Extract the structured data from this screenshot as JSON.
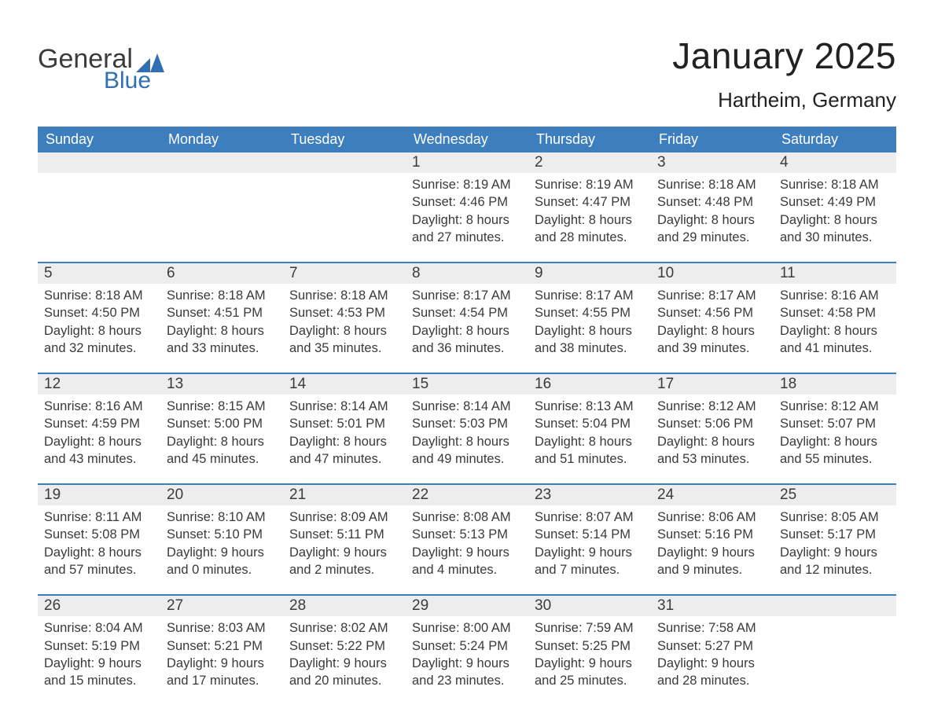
{
  "brand": {
    "word1": "General",
    "word2": "Blue",
    "text_color": "#3b3b3b",
    "accent_color": "#2f6fb2"
  },
  "header": {
    "title": "January 2025",
    "location": "Hartheim, Germany"
  },
  "calendar": {
    "type": "table",
    "header_bg": "#3d7ebf",
    "header_text_color": "#ffffff",
    "daynum_band_bg": "#ededed",
    "week_divider_color": "#3d7ebf",
    "body_text_color": "#3a3a3a",
    "font_family": "Arial",
    "dow": [
      "Sunday",
      "Monday",
      "Tuesday",
      "Wednesday",
      "Thursday",
      "Friday",
      "Saturday"
    ],
    "weeks": [
      [
        {
          "n": "",
          "sunrise": "",
          "sunset": "",
          "d1": "",
          "d2": "",
          "empty": true
        },
        {
          "n": "",
          "sunrise": "",
          "sunset": "",
          "d1": "",
          "d2": "",
          "empty": true
        },
        {
          "n": "",
          "sunrise": "",
          "sunset": "",
          "d1": "",
          "d2": "",
          "empty": true
        },
        {
          "n": "1",
          "sunrise": "Sunrise: 8:19 AM",
          "sunset": "Sunset: 4:46 PM",
          "d1": "Daylight: 8 hours",
          "d2": "and 27 minutes."
        },
        {
          "n": "2",
          "sunrise": "Sunrise: 8:19 AM",
          "sunset": "Sunset: 4:47 PM",
          "d1": "Daylight: 8 hours",
          "d2": "and 28 minutes."
        },
        {
          "n": "3",
          "sunrise": "Sunrise: 8:18 AM",
          "sunset": "Sunset: 4:48 PM",
          "d1": "Daylight: 8 hours",
          "d2": "and 29 minutes."
        },
        {
          "n": "4",
          "sunrise": "Sunrise: 8:18 AM",
          "sunset": "Sunset: 4:49 PM",
          "d1": "Daylight: 8 hours",
          "d2": "and 30 minutes."
        }
      ],
      [
        {
          "n": "5",
          "sunrise": "Sunrise: 8:18 AM",
          "sunset": "Sunset: 4:50 PM",
          "d1": "Daylight: 8 hours",
          "d2": "and 32 minutes."
        },
        {
          "n": "6",
          "sunrise": "Sunrise: 8:18 AM",
          "sunset": "Sunset: 4:51 PM",
          "d1": "Daylight: 8 hours",
          "d2": "and 33 minutes."
        },
        {
          "n": "7",
          "sunrise": "Sunrise: 8:18 AM",
          "sunset": "Sunset: 4:53 PM",
          "d1": "Daylight: 8 hours",
          "d2": "and 35 minutes."
        },
        {
          "n": "8",
          "sunrise": "Sunrise: 8:17 AM",
          "sunset": "Sunset: 4:54 PM",
          "d1": "Daylight: 8 hours",
          "d2": "and 36 minutes."
        },
        {
          "n": "9",
          "sunrise": "Sunrise: 8:17 AM",
          "sunset": "Sunset: 4:55 PM",
          "d1": "Daylight: 8 hours",
          "d2": "and 38 minutes."
        },
        {
          "n": "10",
          "sunrise": "Sunrise: 8:17 AM",
          "sunset": "Sunset: 4:56 PM",
          "d1": "Daylight: 8 hours",
          "d2": "and 39 minutes."
        },
        {
          "n": "11",
          "sunrise": "Sunrise: 8:16 AM",
          "sunset": "Sunset: 4:58 PM",
          "d1": "Daylight: 8 hours",
          "d2": "and 41 minutes."
        }
      ],
      [
        {
          "n": "12",
          "sunrise": "Sunrise: 8:16 AM",
          "sunset": "Sunset: 4:59 PM",
          "d1": "Daylight: 8 hours",
          "d2": "and 43 minutes."
        },
        {
          "n": "13",
          "sunrise": "Sunrise: 8:15 AM",
          "sunset": "Sunset: 5:00 PM",
          "d1": "Daylight: 8 hours",
          "d2": "and 45 minutes."
        },
        {
          "n": "14",
          "sunrise": "Sunrise: 8:14 AM",
          "sunset": "Sunset: 5:01 PM",
          "d1": "Daylight: 8 hours",
          "d2": "and 47 minutes."
        },
        {
          "n": "15",
          "sunrise": "Sunrise: 8:14 AM",
          "sunset": "Sunset: 5:03 PM",
          "d1": "Daylight: 8 hours",
          "d2": "and 49 minutes."
        },
        {
          "n": "16",
          "sunrise": "Sunrise: 8:13 AM",
          "sunset": "Sunset: 5:04 PM",
          "d1": "Daylight: 8 hours",
          "d2": "and 51 minutes."
        },
        {
          "n": "17",
          "sunrise": "Sunrise: 8:12 AM",
          "sunset": "Sunset: 5:06 PM",
          "d1": "Daylight: 8 hours",
          "d2": "and 53 minutes."
        },
        {
          "n": "18",
          "sunrise": "Sunrise: 8:12 AM",
          "sunset": "Sunset: 5:07 PM",
          "d1": "Daylight: 8 hours",
          "d2": "and 55 minutes."
        }
      ],
      [
        {
          "n": "19",
          "sunrise": "Sunrise: 8:11 AM",
          "sunset": "Sunset: 5:08 PM",
          "d1": "Daylight: 8 hours",
          "d2": "and 57 minutes."
        },
        {
          "n": "20",
          "sunrise": "Sunrise: 8:10 AM",
          "sunset": "Sunset: 5:10 PM",
          "d1": "Daylight: 9 hours",
          "d2": "and 0 minutes."
        },
        {
          "n": "21",
          "sunrise": "Sunrise: 8:09 AM",
          "sunset": "Sunset: 5:11 PM",
          "d1": "Daylight: 9 hours",
          "d2": "and 2 minutes."
        },
        {
          "n": "22",
          "sunrise": "Sunrise: 8:08 AM",
          "sunset": "Sunset: 5:13 PM",
          "d1": "Daylight: 9 hours",
          "d2": "and 4 minutes."
        },
        {
          "n": "23",
          "sunrise": "Sunrise: 8:07 AM",
          "sunset": "Sunset: 5:14 PM",
          "d1": "Daylight: 9 hours",
          "d2": "and 7 minutes."
        },
        {
          "n": "24",
          "sunrise": "Sunrise: 8:06 AM",
          "sunset": "Sunset: 5:16 PM",
          "d1": "Daylight: 9 hours",
          "d2": "and 9 minutes."
        },
        {
          "n": "25",
          "sunrise": "Sunrise: 8:05 AM",
          "sunset": "Sunset: 5:17 PM",
          "d1": "Daylight: 9 hours",
          "d2": "and 12 minutes."
        }
      ],
      [
        {
          "n": "26",
          "sunrise": "Sunrise: 8:04 AM",
          "sunset": "Sunset: 5:19 PM",
          "d1": "Daylight: 9 hours",
          "d2": "and 15 minutes."
        },
        {
          "n": "27",
          "sunrise": "Sunrise: 8:03 AM",
          "sunset": "Sunset: 5:21 PM",
          "d1": "Daylight: 9 hours",
          "d2": "and 17 minutes."
        },
        {
          "n": "28",
          "sunrise": "Sunrise: 8:02 AM",
          "sunset": "Sunset: 5:22 PM",
          "d1": "Daylight: 9 hours",
          "d2": "and 20 minutes."
        },
        {
          "n": "29",
          "sunrise": "Sunrise: 8:00 AM",
          "sunset": "Sunset: 5:24 PM",
          "d1": "Daylight: 9 hours",
          "d2": "and 23 minutes."
        },
        {
          "n": "30",
          "sunrise": "Sunrise: 7:59 AM",
          "sunset": "Sunset: 5:25 PM",
          "d1": "Daylight: 9 hours",
          "d2": "and 25 minutes."
        },
        {
          "n": "31",
          "sunrise": "Sunrise: 7:58 AM",
          "sunset": "Sunset: 5:27 PM",
          "d1": "Daylight: 9 hours",
          "d2": "and 28 minutes."
        },
        {
          "n": "",
          "sunrise": "",
          "sunset": "",
          "d1": "",
          "d2": "",
          "empty": true
        }
      ]
    ]
  }
}
